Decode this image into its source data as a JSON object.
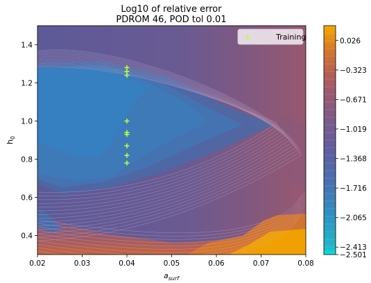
{
  "chart_data": {
    "type": "heatmap",
    "title": "Log10 of relative error",
    "subtitle": "PDROM 46, POD tol 0.01",
    "xlabel": "a",
    "xlabel_sub": "surf",
    "ylabel": "h",
    "ylabel_sub": "0",
    "xlim": [
      0.02,
      0.08
    ],
    "ylim": [
      0.3,
      1.5
    ],
    "xticks": [
      "0.02",
      "0.03",
      "0.04",
      "0.05",
      "0.06",
      "0.07",
      "0.08"
    ],
    "yticks": [
      "0.4",
      "0.6",
      "0.8",
      "1.0",
      "1.2",
      "1.4"
    ],
    "colorbar": {
      "min": -2.501,
      "max": 0.2,
      "ticks": [
        "0.026",
        "−0.323",
        "−0.671",
        "−1.019",
        "−1.368",
        "−1.716",
        "−2.065",
        "−2.413",
        "−2.501"
      ],
      "tick_values": [
        0.026,
        -0.323,
        -0.671,
        -1.019,
        -1.368,
        -1.716,
        -2.065,
        -2.413,
        -2.501
      ]
    },
    "training_points": [
      {
        "x": 0.04,
        "y": 1.28
      },
      {
        "x": 0.04,
        "y": 1.26
      },
      {
        "x": 0.04,
        "y": 1.24
      },
      {
        "x": 0.04,
        "y": 1.0
      },
      {
        "x": 0.04,
        "y": 0.94
      },
      {
        "x": 0.04,
        "y": 0.93
      },
      {
        "x": 0.04,
        "y": 0.87
      },
      {
        "x": 0.04,
        "y": 0.82
      },
      {
        "x": 0.04,
        "y": 0.78
      }
    ],
    "legend": {
      "label": "Training",
      "position": "top-right"
    },
    "colors": {
      "low": "#00d4d4",
      "blue": "#3a7fc0",
      "purple": "#6a5a9a",
      "mauve": "#9a5870",
      "orange": "#f0a000",
      "marker": "#b8ff40"
    }
  }
}
